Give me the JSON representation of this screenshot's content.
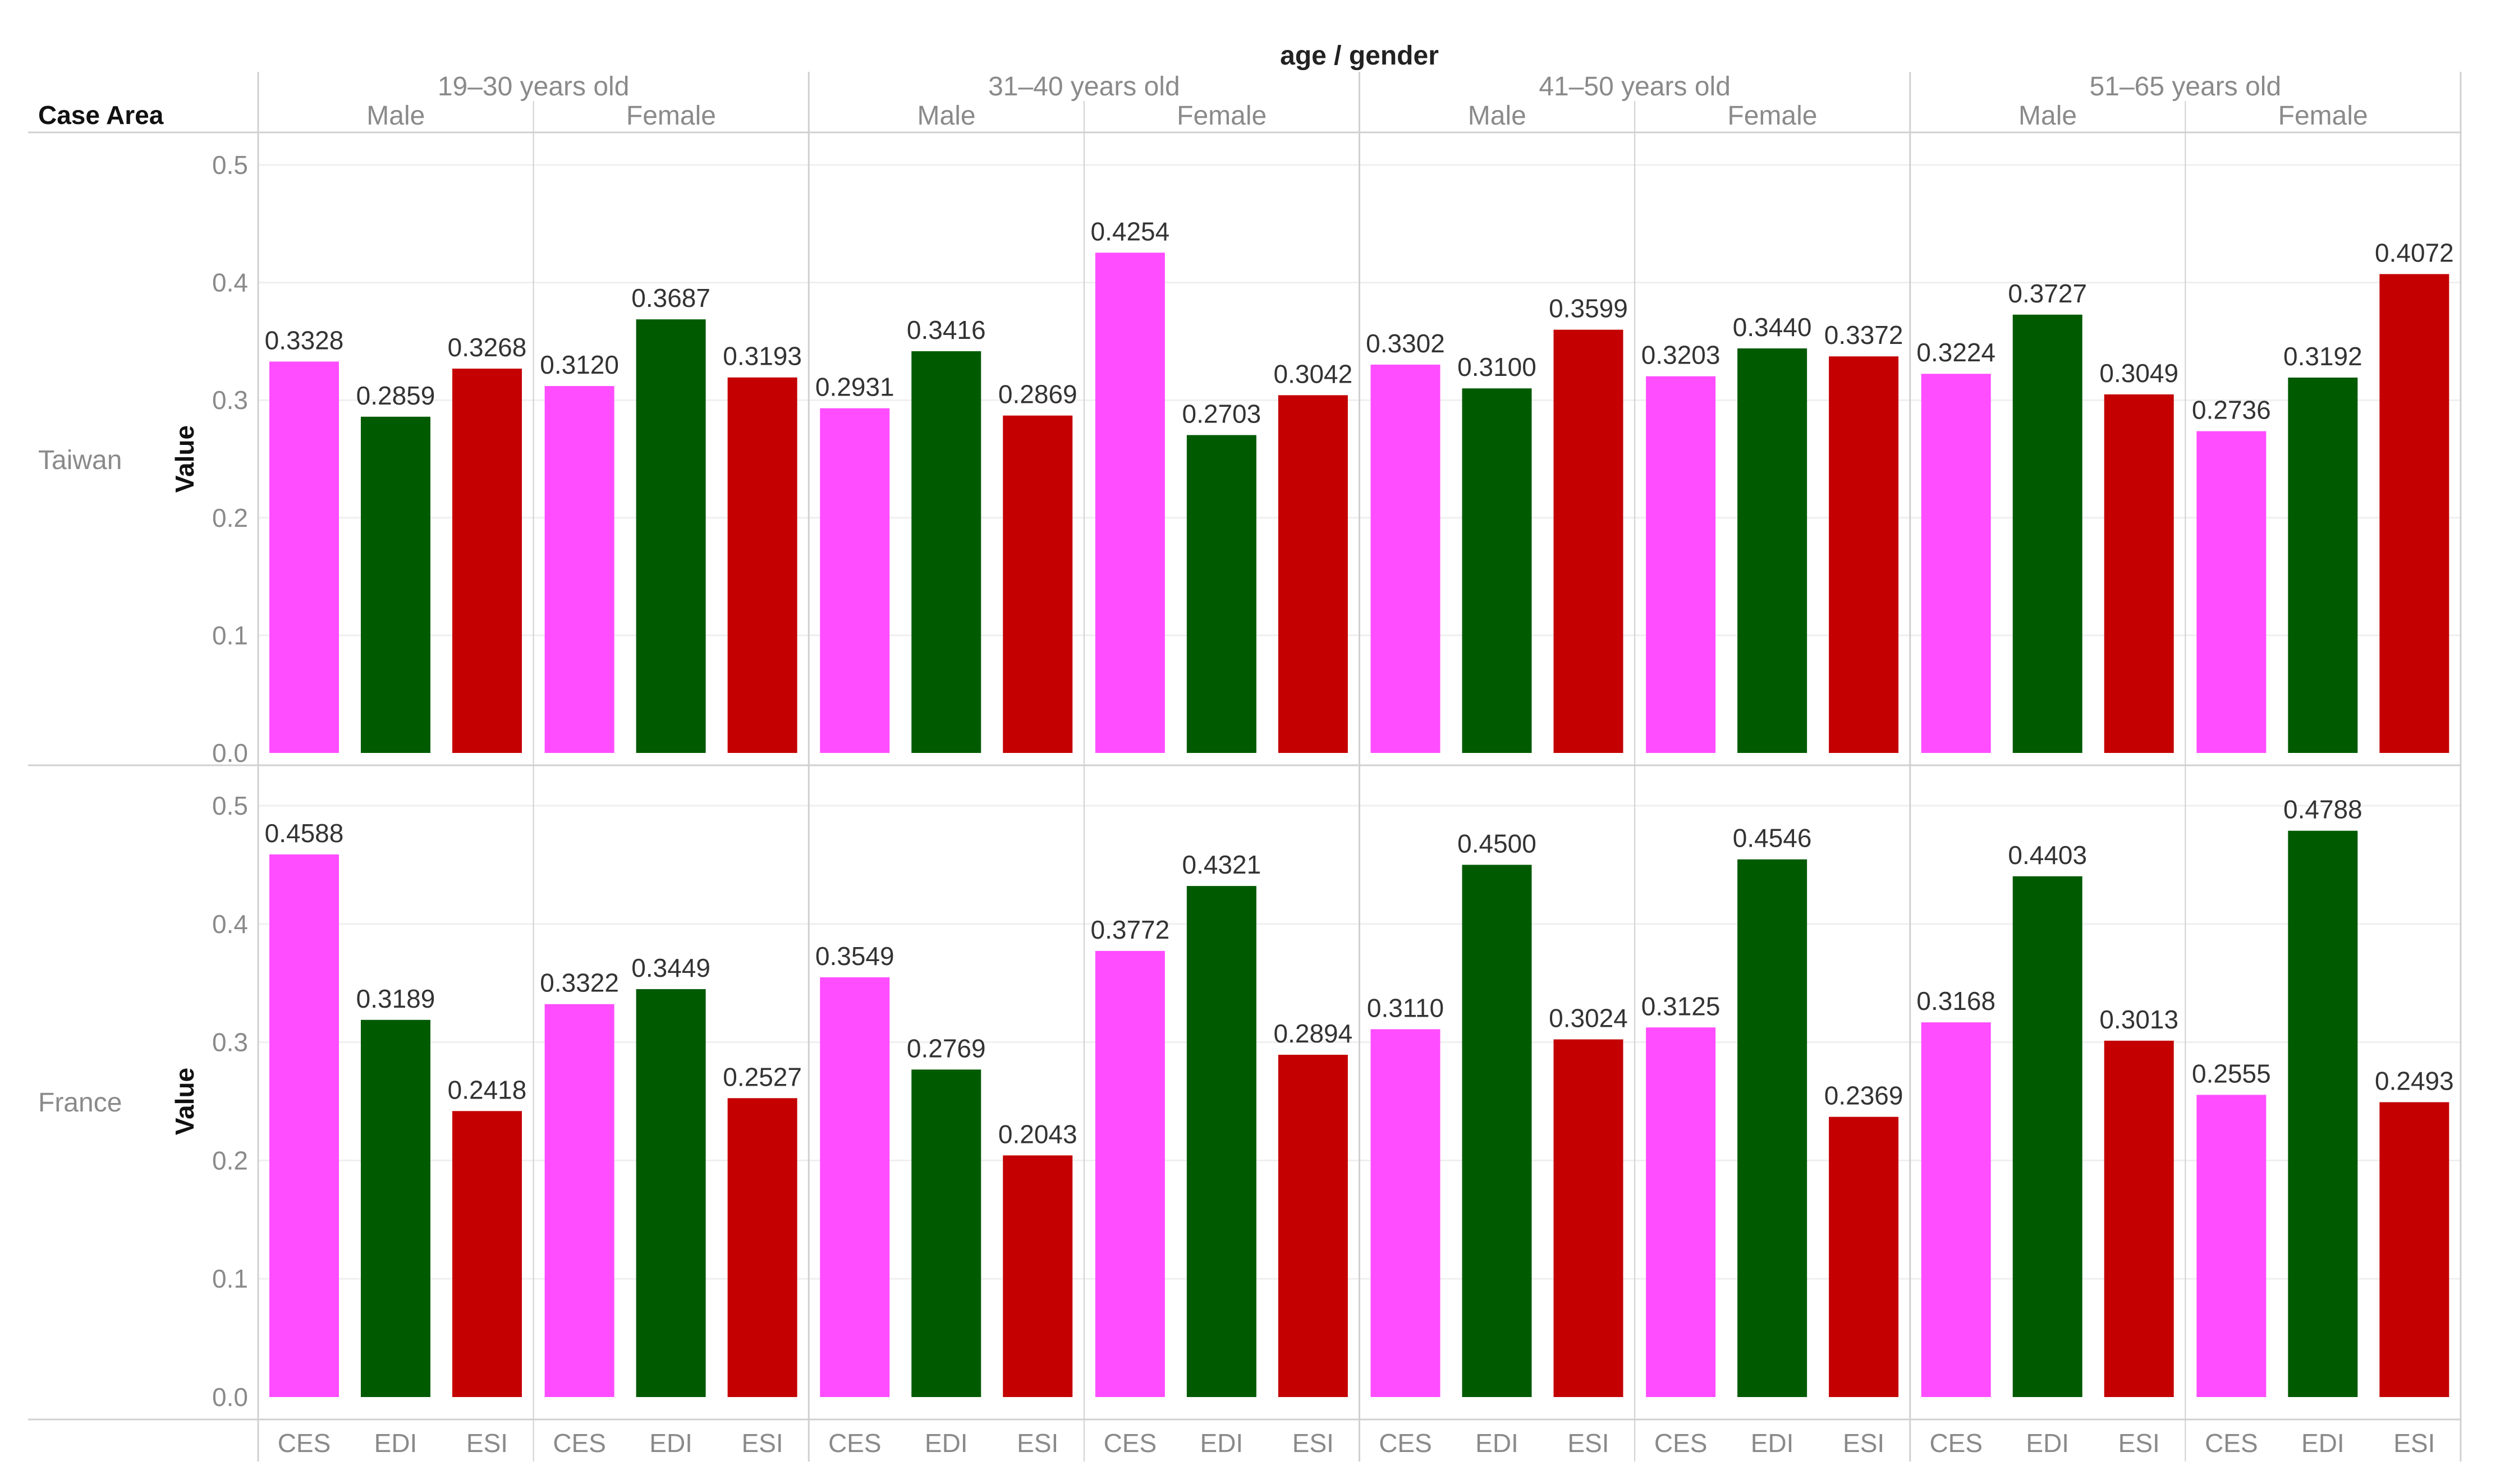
{
  "chart_data": {
    "type": "bar",
    "title": "age / gender",
    "row_dimension_label": "Case Area",
    "ylabel": "Value",
    "ylim": [
      0,
      0.5
    ],
    "yticks": [
      "0.0",
      "0.1",
      "0.2",
      "0.3",
      "0.4",
      "0.5"
    ],
    "age_groups": [
      {
        "label": "19–30 years old",
        "genders": [
          "Male",
          "Female"
        ]
      },
      {
        "label": "31–40 years old",
        "genders": [
          "Male",
          "Female"
        ]
      },
      {
        "label": "41–50 years old",
        "genders": [
          "Male",
          "Female"
        ]
      },
      {
        "label": "51–65 years old",
        "genders": [
          "Male",
          "Female"
        ]
      }
    ],
    "categories": [
      "CES",
      "EDI",
      "ESI"
    ],
    "colors": {
      "CES": "#ff4dff",
      "EDI": "#005a00",
      "ESI": "#c40000"
    },
    "rows": [
      {
        "area": "Taiwan",
        "values": [
          [
            0.3328,
            0.2859,
            0.3268
          ],
          [
            0.312,
            0.3687,
            0.3193
          ],
          [
            0.2931,
            0.3416,
            0.2869
          ],
          [
            0.4254,
            0.2703,
            0.3042
          ],
          [
            0.3302,
            0.31,
            0.3599
          ],
          [
            0.3203,
            0.344,
            0.3372
          ],
          [
            0.3224,
            0.3727,
            0.3049
          ],
          [
            0.2736,
            0.3192,
            0.4072
          ]
        ],
        "labels": [
          [
            "0.3328",
            "0.2859",
            "0.3268"
          ],
          [
            "0.3120",
            "0.3687",
            "0.3193"
          ],
          [
            "0.2931",
            "0.3416",
            "0.2869"
          ],
          [
            "0.4254",
            "0.2703",
            "0.3042"
          ],
          [
            "0.3302",
            "0.3100",
            "0.3599"
          ],
          [
            "0.3203",
            "0.3440",
            "0.3372"
          ],
          [
            "0.3224",
            "0.3727",
            "0.3049"
          ],
          [
            "0.2736",
            "0.3192",
            "0.4072"
          ]
        ]
      },
      {
        "area": "France",
        "values": [
          [
            0.4588,
            0.3189,
            0.2418
          ],
          [
            0.3322,
            0.3449,
            0.2527
          ],
          [
            0.3549,
            0.2769,
            0.2043
          ],
          [
            0.3772,
            0.4321,
            0.2894
          ],
          [
            0.311,
            0.45,
            0.3024
          ],
          [
            0.3125,
            0.4546,
            0.2369
          ],
          [
            0.3168,
            0.4403,
            0.3013
          ],
          [
            0.2555,
            0.4788,
            0.2493
          ]
        ],
        "labels": [
          [
            "0.4588",
            "0.3189",
            "0.2418"
          ],
          [
            "0.3322",
            "0.3449",
            "0.2527"
          ],
          [
            "0.3549",
            "0.2769",
            "0.2043"
          ],
          [
            "0.3772",
            "0.4321",
            "0.2894"
          ],
          [
            "0.3110",
            "0.4500",
            "0.3024"
          ],
          [
            "0.3125",
            "0.4546",
            "0.2369"
          ],
          [
            "0.3168",
            "0.4403",
            "0.3013"
          ],
          [
            "0.2555",
            "0.4788",
            "0.2493"
          ]
        ]
      }
    ]
  }
}
